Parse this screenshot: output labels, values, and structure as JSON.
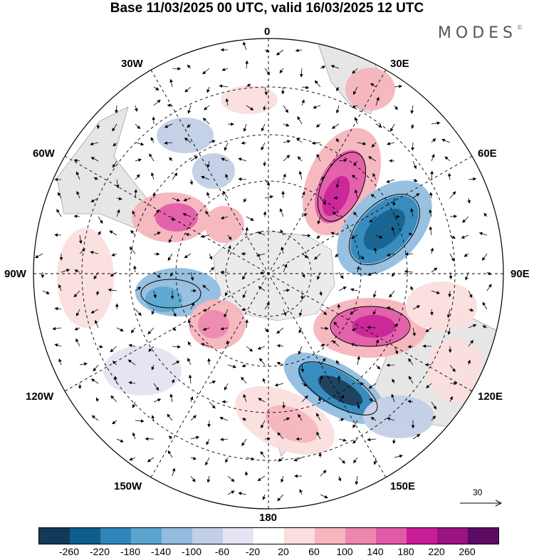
{
  "title": "Base 11/03/2025 00 UTC, valid 16/03/2025 12 UTC",
  "brand": "MODES",
  "brand_mark": "©",
  "map": {
    "projection": "south polar stereographic",
    "longitude_labels": [
      "0",
      "30E",
      "60E",
      "90E",
      "120E",
      "150E",
      "180",
      "150W",
      "120W",
      "90W",
      "60W",
      "30W"
    ],
    "wind_scale_label": "30"
  },
  "colorbar": {
    "labels": [
      "-260",
      "-220",
      "-180",
      "-140",
      "-100",
      "-60",
      "-20",
      "20",
      "60",
      "100",
      "140",
      "180",
      "220",
      "260"
    ],
    "colors": [
      "#123a58",
      "#0e5d8c",
      "#2e86bb",
      "#5aa5cf",
      "#93bddf",
      "#c2cfe6",
      "#e4e4f2",
      "#ffffff",
      "#fbdfdf",
      "#f6b6bd",
      "#ef86ad",
      "#e25aa7",
      "#c91d95",
      "#9b1281",
      "#5c0a64"
    ]
  }
}
